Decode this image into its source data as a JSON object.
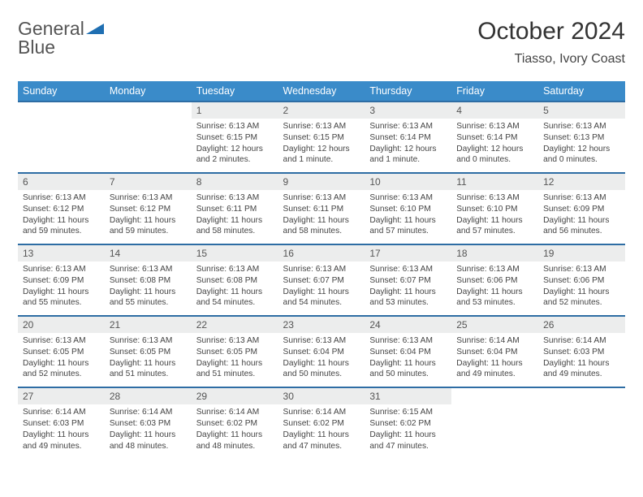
{
  "brand": {
    "part1": "General",
    "part2": "Blue"
  },
  "title": "October 2024",
  "location": "Tiasso, Ivory Coast",
  "colors": {
    "header_bg": "#3a8bc9",
    "header_fg": "#ffffff",
    "rule": "#2e6da4",
    "daynum_bg": "#eceded",
    "text": "#444444",
    "brand_gray": "#6a6a6a",
    "brand_blue": "#1f6fb2"
  },
  "day_headers": [
    "Sunday",
    "Monday",
    "Tuesday",
    "Wednesday",
    "Thursday",
    "Friday",
    "Saturday"
  ],
  "weeks": [
    {
      "nums": [
        "",
        "",
        "1",
        "2",
        "3",
        "4",
        "5"
      ],
      "cells": [
        null,
        null,
        {
          "sunrise": "Sunrise: 6:13 AM",
          "sunset": "Sunset: 6:15 PM",
          "daylight": "Daylight: 12 hours and 2 minutes."
        },
        {
          "sunrise": "Sunrise: 6:13 AM",
          "sunset": "Sunset: 6:15 PM",
          "daylight": "Daylight: 12 hours and 1 minute."
        },
        {
          "sunrise": "Sunrise: 6:13 AM",
          "sunset": "Sunset: 6:14 PM",
          "daylight": "Daylight: 12 hours and 1 minute."
        },
        {
          "sunrise": "Sunrise: 6:13 AM",
          "sunset": "Sunset: 6:14 PM",
          "daylight": "Daylight: 12 hours and 0 minutes."
        },
        {
          "sunrise": "Sunrise: 6:13 AM",
          "sunset": "Sunset: 6:13 PM",
          "daylight": "Daylight: 12 hours and 0 minutes."
        }
      ]
    },
    {
      "nums": [
        "6",
        "7",
        "8",
        "9",
        "10",
        "11",
        "12"
      ],
      "cells": [
        {
          "sunrise": "Sunrise: 6:13 AM",
          "sunset": "Sunset: 6:12 PM",
          "daylight": "Daylight: 11 hours and 59 minutes."
        },
        {
          "sunrise": "Sunrise: 6:13 AM",
          "sunset": "Sunset: 6:12 PM",
          "daylight": "Daylight: 11 hours and 59 minutes."
        },
        {
          "sunrise": "Sunrise: 6:13 AM",
          "sunset": "Sunset: 6:11 PM",
          "daylight": "Daylight: 11 hours and 58 minutes."
        },
        {
          "sunrise": "Sunrise: 6:13 AM",
          "sunset": "Sunset: 6:11 PM",
          "daylight": "Daylight: 11 hours and 58 minutes."
        },
        {
          "sunrise": "Sunrise: 6:13 AM",
          "sunset": "Sunset: 6:10 PM",
          "daylight": "Daylight: 11 hours and 57 minutes."
        },
        {
          "sunrise": "Sunrise: 6:13 AM",
          "sunset": "Sunset: 6:10 PM",
          "daylight": "Daylight: 11 hours and 57 minutes."
        },
        {
          "sunrise": "Sunrise: 6:13 AM",
          "sunset": "Sunset: 6:09 PM",
          "daylight": "Daylight: 11 hours and 56 minutes."
        }
      ]
    },
    {
      "nums": [
        "13",
        "14",
        "15",
        "16",
        "17",
        "18",
        "19"
      ],
      "cells": [
        {
          "sunrise": "Sunrise: 6:13 AM",
          "sunset": "Sunset: 6:09 PM",
          "daylight": "Daylight: 11 hours and 55 minutes."
        },
        {
          "sunrise": "Sunrise: 6:13 AM",
          "sunset": "Sunset: 6:08 PM",
          "daylight": "Daylight: 11 hours and 55 minutes."
        },
        {
          "sunrise": "Sunrise: 6:13 AM",
          "sunset": "Sunset: 6:08 PM",
          "daylight": "Daylight: 11 hours and 54 minutes."
        },
        {
          "sunrise": "Sunrise: 6:13 AM",
          "sunset": "Sunset: 6:07 PM",
          "daylight": "Daylight: 11 hours and 54 minutes."
        },
        {
          "sunrise": "Sunrise: 6:13 AM",
          "sunset": "Sunset: 6:07 PM",
          "daylight": "Daylight: 11 hours and 53 minutes."
        },
        {
          "sunrise": "Sunrise: 6:13 AM",
          "sunset": "Sunset: 6:06 PM",
          "daylight": "Daylight: 11 hours and 53 minutes."
        },
        {
          "sunrise": "Sunrise: 6:13 AM",
          "sunset": "Sunset: 6:06 PM",
          "daylight": "Daylight: 11 hours and 52 minutes."
        }
      ]
    },
    {
      "nums": [
        "20",
        "21",
        "22",
        "23",
        "24",
        "25",
        "26"
      ],
      "cells": [
        {
          "sunrise": "Sunrise: 6:13 AM",
          "sunset": "Sunset: 6:05 PM",
          "daylight": "Daylight: 11 hours and 52 minutes."
        },
        {
          "sunrise": "Sunrise: 6:13 AM",
          "sunset": "Sunset: 6:05 PM",
          "daylight": "Daylight: 11 hours and 51 minutes."
        },
        {
          "sunrise": "Sunrise: 6:13 AM",
          "sunset": "Sunset: 6:05 PM",
          "daylight": "Daylight: 11 hours and 51 minutes."
        },
        {
          "sunrise": "Sunrise: 6:13 AM",
          "sunset": "Sunset: 6:04 PM",
          "daylight": "Daylight: 11 hours and 50 minutes."
        },
        {
          "sunrise": "Sunrise: 6:13 AM",
          "sunset": "Sunset: 6:04 PM",
          "daylight": "Daylight: 11 hours and 50 minutes."
        },
        {
          "sunrise": "Sunrise: 6:14 AM",
          "sunset": "Sunset: 6:04 PM",
          "daylight": "Daylight: 11 hours and 49 minutes."
        },
        {
          "sunrise": "Sunrise: 6:14 AM",
          "sunset": "Sunset: 6:03 PM",
          "daylight": "Daylight: 11 hours and 49 minutes."
        }
      ]
    },
    {
      "nums": [
        "27",
        "28",
        "29",
        "30",
        "31",
        "",
        ""
      ],
      "cells": [
        {
          "sunrise": "Sunrise: 6:14 AM",
          "sunset": "Sunset: 6:03 PM",
          "daylight": "Daylight: 11 hours and 49 minutes."
        },
        {
          "sunrise": "Sunrise: 6:14 AM",
          "sunset": "Sunset: 6:03 PM",
          "daylight": "Daylight: 11 hours and 48 minutes."
        },
        {
          "sunrise": "Sunrise: 6:14 AM",
          "sunset": "Sunset: 6:02 PM",
          "daylight": "Daylight: 11 hours and 48 minutes."
        },
        {
          "sunrise": "Sunrise: 6:14 AM",
          "sunset": "Sunset: 6:02 PM",
          "daylight": "Daylight: 11 hours and 47 minutes."
        },
        {
          "sunrise": "Sunrise: 6:15 AM",
          "sunset": "Sunset: 6:02 PM",
          "daylight": "Daylight: 11 hours and 47 minutes."
        },
        null,
        null
      ]
    }
  ]
}
